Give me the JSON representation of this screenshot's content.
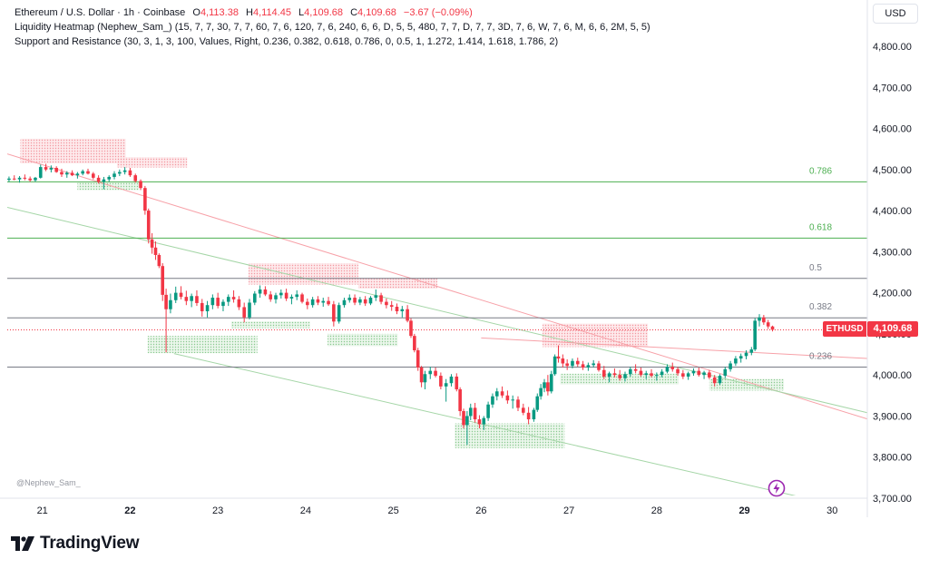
{
  "legend": {
    "title": "Ethereum / U.S. Dollar · 1h · Coinbase",
    "open_key": "O",
    "open": "4,113.38",
    "high_key": "H",
    "high": "4,114.45",
    "low_key": "L",
    "low": "4,109.68",
    "close_key": "C",
    "close": "4,109.68",
    "change": "−3.67 (−0.09%)",
    "indicator1": "Liquidity Heatmap (Nephew_Sam_) (15, 7, 7, 30, 7, 7, 60, 7, 6, 120, 7, 6, 240, 6, 6, D, 5, 5, 480, 7, 7, D, 7, 7, 3D, 7, 6, W, 7, 6, M, 6, 6, 2M, 5, 5)",
    "indicator2": "Support and Resistance (30, 3, 1, 3, 100, Values, Right, 0.236, 0.382, 0.618, 0.786, 0, 0.5, 1, 1.272, 1.414, 1.618, 1.786, 2)"
  },
  "currency_button": "USD",
  "watermark": "@Nephew_Sam_",
  "brand": {
    "name": "TradingView",
    "logo_icon": "tradingview-logo-icon"
  },
  "price_tag": {
    "symbol": "ETHUSD",
    "value": "4,109.68"
  },
  "colors": {
    "up": "#089981",
    "down": "#f23645",
    "fib_green": "#4caf50",
    "fib_gray": "#787b86",
    "channel_red": "#f7a1a8",
    "channel_green": "#a5d6a7",
    "heat_red": "#f9c8cc",
    "heat_green": "#c8e6c9"
  },
  "chart_data": {
    "type": "candlestick",
    "symbol": "ETHUSD",
    "timeframe": "1h",
    "ylim": [
      3700,
      4880
    ],
    "y_ticks": [
      "4,800.00",
      "4,700.00",
      "4,600.00",
      "4,500.00",
      "4,400.00",
      "4,300.00",
      "4,200.00",
      "4,100.00",
      "4,000.00",
      "3,900.00",
      "3,800.00",
      "3,700.00"
    ],
    "y_tick_values": [
      4800,
      4700,
      4600,
      4500,
      4400,
      4300,
      4200,
      4100,
      4000,
      3900,
      3800,
      3700
    ],
    "x_ticks": [
      "21",
      "22",
      "23",
      "24",
      "25",
      "26",
      "27",
      "28",
      "29",
      "30"
    ],
    "x_tick_bold": [
      false,
      true,
      false,
      false,
      false,
      false,
      false,
      false,
      true,
      false
    ],
    "xlim": [
      20.6,
      30.4
    ],
    "fib_levels": [
      {
        "label": "0.786",
        "price": 4470,
        "color": "green"
      },
      {
        "label": "0.618",
        "price": 4333,
        "color": "green"
      },
      {
        "label": "0.5",
        "price": 4235,
        "color": "gray"
      },
      {
        "label": "0.382",
        "price": 4139,
        "color": "gray"
      },
      {
        "label": "0.236",
        "price": 4019,
        "color": "gray"
      }
    ],
    "last_price": 4109.68,
    "channel_lines": [
      {
        "color": "red",
        "x": [
          20.6,
          30.4
        ],
        "y": [
          4538,
          3893
        ]
      },
      {
        "color": "green",
        "x": [
          20.6,
          30.4
        ],
        "y": [
          4408,
          3908
        ]
      },
      {
        "color": "green",
        "x": [
          22.5,
          29.8
        ],
        "y": [
          4052,
          3695
        ]
      },
      {
        "color": "red",
        "x": [
          26.0,
          30.4
        ],
        "y": [
          4090,
          4040
        ]
      }
    ],
    "heat_zones": [
      {
        "color": "red",
        "x": [
          20.75,
          21.95
        ],
        "y": [
          4515,
          4575
        ]
      },
      {
        "color": "red",
        "x": [
          21.85,
          22.65
        ],
        "y": [
          4505,
          4530
        ]
      },
      {
        "color": "green",
        "x": [
          21.4,
          22.1
        ],
        "y": [
          4450,
          4470
        ]
      },
      {
        "color": "red",
        "x": [
          23.35,
          24.6
        ],
        "y": [
          4220,
          4272
        ]
      },
      {
        "color": "red",
        "x": [
          24.6,
          25.5
        ],
        "y": [
          4210,
          4235
        ]
      },
      {
        "color": "green",
        "x": [
          22.2,
          23.45
        ],
        "y": [
          4053,
          4095
        ]
      },
      {
        "color": "green",
        "x": [
          23.15,
          24.05
        ],
        "y": [
          4114,
          4130
        ]
      },
      {
        "color": "green",
        "x": [
          24.25,
          25.05
        ],
        "y": [
          4070,
          4100
        ]
      },
      {
        "color": "green",
        "x": [
          25.7,
          26.95
        ],
        "y": [
          3822,
          3882
        ]
      },
      {
        "color": "red",
        "x": [
          26.7,
          27.9
        ],
        "y": [
          4068,
          4125
        ]
      },
      {
        "color": "green",
        "x": [
          26.9,
          28.25
        ],
        "y": [
          3977,
          4003
        ]
      },
      {
        "color": "green",
        "x": [
          28.6,
          29.45
        ],
        "y": [
          3962,
          3990
        ]
      }
    ],
    "candles": [
      [
        20.62,
        4475,
        4483,
        4470,
        4478
      ],
      [
        20.68,
        4478,
        4486,
        4474,
        4476
      ],
      [
        20.74,
        4476,
        4484,
        4468,
        4480
      ],
      [
        20.8,
        4480,
        4488,
        4474,
        4478
      ],
      [
        20.86,
        4478,
        4483,
        4470,
        4474
      ],
      [
        20.92,
        4474,
        4482,
        4470,
        4480
      ],
      [
        20.98,
        4480,
        4512,
        4478,
        4506
      ],
      [
        21.04,
        4506,
        4514,
        4496,
        4500
      ],
      [
        21.1,
        4500,
        4510,
        4493,
        4504
      ],
      [
        21.16,
        4504,
        4508,
        4492,
        4494
      ],
      [
        21.22,
        4494,
        4502,
        4482,
        4488
      ],
      [
        21.28,
        4488,
        4496,
        4480,
        4492
      ],
      [
        21.34,
        4492,
        4498,
        4484,
        4486
      ],
      [
        21.4,
        4486,
        4494,
        4478,
        4490
      ],
      [
        21.46,
        4490,
        4500,
        4486,
        4496
      ],
      [
        21.52,
        4496,
        4502,
        4488,
        4490
      ],
      [
        21.58,
        4490,
        4494,
        4476,
        4480
      ],
      [
        21.64,
        4480,
        4486,
        4466,
        4470
      ],
      [
        21.7,
        4470,
        4482,
        4452,
        4476
      ],
      [
        21.76,
        4476,
        4486,
        4470,
        4482
      ],
      [
        21.82,
        4482,
        4496,
        4476,
        4490
      ],
      [
        21.88,
        4490,
        4500,
        4484,
        4494
      ],
      [
        21.94,
        4494,
        4506,
        4488,
        4498
      ],
      [
        22.0,
        4498,
        4504,
        4482,
        4486
      ],
      [
        22.06,
        4486,
        4490,
        4468,
        4472
      ],
      [
        22.12,
        4472,
        4476,
        4450,
        4455
      ],
      [
        22.17,
        4455,
        4460,
        4390,
        4400
      ],
      [
        22.21,
        4400,
        4405,
        4320,
        4330
      ],
      [
        22.25,
        4330,
        4345,
        4295,
        4310
      ],
      [
        22.29,
        4310,
        4325,
        4280,
        4292
      ],
      [
        22.33,
        4292,
        4296,
        4260,
        4265
      ],
      [
        22.37,
        4265,
        4272,
        4180,
        4195
      ],
      [
        22.41,
        4195,
        4210,
        4055,
        4160
      ],
      [
        22.46,
        4160,
        4198,
        4150,
        4182
      ],
      [
        22.52,
        4182,
        4215,
        4175,
        4200
      ],
      [
        22.58,
        4200,
        4216,
        4184,
        4190
      ],
      [
        22.64,
        4190,
        4205,
        4170,
        4180
      ],
      [
        22.7,
        4180,
        4198,
        4165,
        4192
      ],
      [
        22.76,
        4192,
        4206,
        4168,
        4175
      ],
      [
        22.82,
        4175,
        4185,
        4142,
        4155
      ],
      [
        22.88,
        4155,
        4180,
        4140,
        4170
      ],
      [
        22.94,
        4170,
        4196,
        4160,
        4188
      ],
      [
        23.0,
        4188,
        4200,
        4162,
        4168
      ],
      [
        23.06,
        4168,
        4184,
        4155,
        4178
      ],
      [
        23.12,
        4178,
        4196,
        4168,
        4190
      ],
      [
        23.18,
        4190,
        4206,
        4176,
        4184
      ],
      [
        23.24,
        4184,
        4192,
        4158,
        4165
      ],
      [
        23.3,
        4165,
        4176,
        4128,
        4140
      ],
      [
        23.36,
        4140,
        4185,
        4135,
        4176
      ],
      [
        23.42,
        4176,
        4204,
        4170,
        4198
      ],
      [
        23.48,
        4198,
        4218,
        4188,
        4208
      ],
      [
        23.54,
        4208,
        4216,
        4192,
        4196
      ],
      [
        23.6,
        4196,
        4204,
        4178,
        4184
      ],
      [
        23.66,
        4184,
        4200,
        4174,
        4194
      ],
      [
        23.72,
        4194,
        4208,
        4186,
        4200
      ],
      [
        23.78,
        4200,
        4210,
        4180,
        4186
      ],
      [
        23.84,
        4186,
        4196,
        4172,
        4190
      ],
      [
        23.9,
        4190,
        4206,
        4182,
        4196
      ],
      [
        23.96,
        4196,
        4200,
        4174,
        4178
      ],
      [
        24.02,
        4178,
        4186,
        4160,
        4170
      ],
      [
        24.08,
        4170,
        4190,
        4164,
        4184
      ],
      [
        24.14,
        4184,
        4192,
        4170,
        4176
      ],
      [
        24.2,
        4176,
        4188,
        4166,
        4180
      ],
      [
        24.26,
        4180,
        4190,
        4168,
        4172
      ],
      [
        24.32,
        4172,
        4180,
        4118,
        4130
      ],
      [
        24.38,
        4130,
        4176,
        4125,
        4170
      ],
      [
        24.44,
        4170,
        4188,
        4164,
        4182
      ],
      [
        24.5,
        4182,
        4196,
        4176,
        4188
      ],
      [
        24.56,
        4188,
        4196,
        4170,
        4176
      ],
      [
        24.62,
        4176,
        4190,
        4170,
        4184
      ],
      [
        24.68,
        4184,
        4192,
        4168,
        4174
      ],
      [
        24.74,
        4174,
        4192,
        4170,
        4188
      ],
      [
        24.8,
        4188,
        4208,
        4180,
        4194
      ],
      [
        24.86,
        4194,
        4200,
        4172,
        4178
      ],
      [
        24.92,
        4178,
        4186,
        4162,
        4170
      ],
      [
        24.98,
        4170,
        4180,
        4156,
        4166
      ],
      [
        25.04,
        4166,
        4174,
        4148,
        4155
      ],
      [
        25.1,
        4155,
        4168,
        4140,
        4160
      ],
      [
        25.16,
        4160,
        4170,
        4128,
        4132
      ],
      [
        25.2,
        4132,
        4138,
        4090,
        4095
      ],
      [
        25.24,
        4095,
        4100,
        4055,
        4060
      ],
      [
        25.28,
        4060,
        4066,
        4010,
        4018
      ],
      [
        25.32,
        4018,
        4022,
        3970,
        3982
      ],
      [
        25.36,
        3982,
        4010,
        3965,
        4002
      ],
      [
        25.42,
        4002,
        4020,
        3990,
        4010
      ],
      [
        25.48,
        4010,
        4018,
        3994,
        3998
      ],
      [
        25.54,
        3998,
        4006,
        3965,
        3972
      ],
      [
        25.6,
        3972,
        3990,
        3935,
        3980
      ],
      [
        25.66,
        3980,
        4002,
        3972,
        3996
      ],
      [
        25.72,
        3996,
        4004,
        3960,
        3965
      ],
      [
        25.76,
        3965,
        3970,
        3900,
        3912
      ],
      [
        25.8,
        3912,
        3918,
        3870,
        3878
      ],
      [
        25.84,
        3878,
        3912,
        3830,
        3900
      ],
      [
        25.88,
        3900,
        3930,
        3890,
        3920
      ],
      [
        25.93,
        3920,
        3932,
        3884,
        3892
      ],
      [
        25.98,
        3892,
        3902,
        3870,
        3880
      ],
      [
        26.03,
        3880,
        3900,
        3866,
        3895
      ],
      [
        26.08,
        3895,
        3935,
        3888,
        3928
      ],
      [
        26.13,
        3928,
        3955,
        3920,
        3948
      ],
      [
        26.18,
        3948,
        3968,
        3938,
        3960
      ],
      [
        26.24,
        3960,
        3972,
        3944,
        3950
      ],
      [
        26.3,
        3950,
        3962,
        3930,
        3938
      ],
      [
        26.36,
        3938,
        3950,
        3918,
        3940
      ],
      [
        26.42,
        3940,
        3948,
        3912,
        3920
      ],
      [
        26.48,
        3920,
        3930,
        3902,
        3908
      ],
      [
        26.54,
        3908,
        3922,
        3880,
        3892
      ],
      [
        26.6,
        3892,
        3920,
        3886,
        3915
      ],
      [
        26.64,
        3915,
        3955,
        3910,
        3948
      ],
      [
        26.68,
        3948,
        3978,
        3940,
        3968
      ],
      [
        26.72,
        3968,
        3990,
        3958,
        3982
      ],
      [
        26.76,
        3982,
        4000,
        3950,
        3960
      ],
      [
        26.8,
        3960,
        4010,
        3955,
        4002
      ],
      [
        26.84,
        4002,
        4050,
        3998,
        4045
      ],
      [
        26.88,
        4045,
        4072,
        4030,
        4040
      ],
      [
        26.93,
        4040,
        4050,
        4018,
        4028
      ],
      [
        26.98,
        4028,
        4038,
        4012,
        4022
      ],
      [
        27.04,
        4022,
        4040,
        4016,
        4034
      ],
      [
        27.1,
        4034,
        4042,
        4020,
        4026
      ],
      [
        27.16,
        4026,
        4034,
        4012,
        4018
      ],
      [
        27.22,
        4018,
        4030,
        4010,
        4024
      ],
      [
        27.28,
        4024,
        4036,
        4018,
        4028
      ],
      [
        27.34,
        4028,
        4034,
        4008,
        4012
      ],
      [
        27.4,
        4012,
        4022,
        3990,
        3996
      ],
      [
        27.46,
        3996,
        4008,
        3982,
        4004
      ],
      [
        27.52,
        4004,
        4016,
        3994,
        4000
      ],
      [
        27.58,
        4000,
        4012,
        3986,
        3992
      ],
      [
        27.64,
        3992,
        4008,
        3984,
        4002
      ],
      [
        27.7,
        4002,
        4020,
        3996,
        4014
      ],
      [
        27.76,
        4014,
        4026,
        4004,
        4010
      ],
      [
        27.82,
        4010,
        4018,
        3996,
        4000
      ],
      [
        27.88,
        4000,
        4010,
        3990,
        4004
      ],
      [
        27.94,
        4004,
        4014,
        3994,
        3998
      ],
      [
        28.0,
        3998,
        4006,
        3986,
        4000
      ],
      [
        28.06,
        4000,
        4014,
        3994,
        4008
      ],
      [
        28.12,
        4008,
        4026,
        4004,
        4020
      ],
      [
        28.18,
        4020,
        4030,
        4008,
        4014
      ],
      [
        28.24,
        4014,
        4020,
        3998,
        4004
      ],
      [
        28.3,
        4004,
        4012,
        3990,
        3996
      ],
      [
        28.36,
        3996,
        4008,
        3988,
        4004
      ],
      [
        28.42,
        4004,
        4016,
        3998,
        4010
      ],
      [
        28.48,
        4010,
        4018,
        3996,
        4000
      ],
      [
        28.54,
        4000,
        4010,
        3990,
        4006
      ],
      [
        28.6,
        4006,
        4012,
        3990,
        3994
      ],
      [
        28.66,
        3994,
        4000,
        3972,
        3980
      ],
      [
        28.72,
        3980,
        4002,
        3976,
        3998
      ],
      [
        28.78,
        3998,
        4020,
        3992,
        4014
      ],
      [
        28.84,
        4014,
        4034,
        4008,
        4028
      ],
      [
        28.9,
        4028,
        4046,
        4022,
        4040
      ],
      [
        28.96,
        4040,
        4052,
        4030,
        4046
      ],
      [
        29.02,
        4046,
        4060,
        4038,
        4054
      ],
      [
        29.08,
        4054,
        4068,
        4048,
        4062
      ],
      [
        29.12,
        4062,
        4138,
        4058,
        4132
      ],
      [
        29.17,
        4132,
        4148,
        4118,
        4140
      ],
      [
        29.22,
        4140,
        4146,
        4122,
        4128
      ],
      [
        29.27,
        4128,
        4134,
        4112,
        4118
      ],
      [
        29.32,
        4118,
        4120,
        4106,
        4110
      ]
    ]
  }
}
